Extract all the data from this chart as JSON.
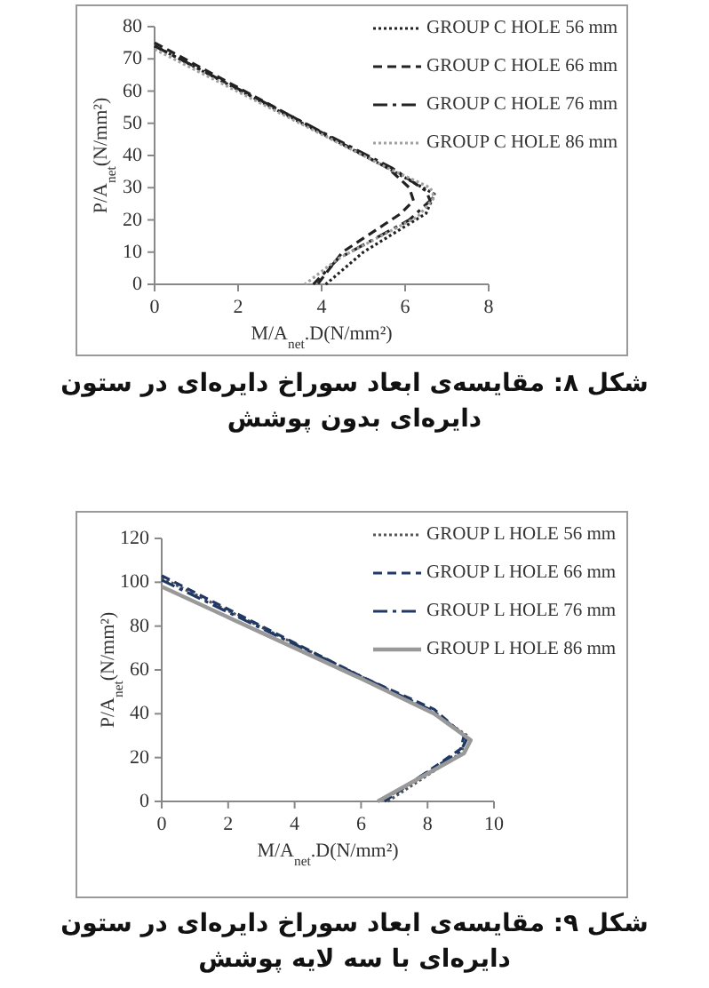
{
  "chart_data": [
    {
      "type": "line",
      "xlabel": "M/A$_{net}$.D(N/mm²)",
      "ylabel": "P/A$_{net}$(N/mm²)",
      "xlim": [
        0,
        8
      ],
      "ylim": [
        0,
        80
      ],
      "xticks": [
        0,
        2,
        4,
        6,
        8
      ],
      "yticks": [
        0,
        10,
        20,
        30,
        40,
        50,
        60,
        70,
        80
      ],
      "grid": false,
      "legend": "top right",
      "marker": "none",
      "annotations": [
        "شکل ۸: مقایسه‌ی ابعاد سوراخ دایره‌ای در ستون دایره‌ای بدون پوشش"
      ],
      "series": [
        {
          "name": "GROUP C HOLE 56 mm",
          "color": "#222222",
          "line_style": "dotted",
          "x": [
            0,
            5.6,
            6.7,
            6.5,
            5.0,
            4.1
          ],
          "values": [
            74,
            36,
            28,
            22,
            10,
            0
          ]
        },
        {
          "name": "GROUP C HOLE 66 mm",
          "color": "#222222",
          "line_style": "dashed",
          "x": [
            0,
            5.6,
            6.1,
            6.2,
            5.9,
            4.5,
            3.9
          ],
          "values": [
            75,
            36,
            30,
            26,
            22,
            10,
            0
          ]
        },
        {
          "name": "GROUP C HOLE 76 mm",
          "color": "#222222",
          "line_style": "dashdot",
          "x": [
            0,
            5.7,
            6.5,
            6.6,
            6.1,
            4.4,
            3.8
          ],
          "values": [
            74,
            36,
            29,
            26,
            20,
            8,
            0
          ]
        },
        {
          "name": "GROUP C HOLE 86 mm",
          "color": "#a0a0a0",
          "line_style": "dotted",
          "x": [
            0,
            5.6,
            6.6,
            6.7,
            6.3,
            4.4,
            3.6
          ],
          "values": [
            73,
            36,
            30,
            27,
            21,
            8,
            0
          ]
        }
      ]
    },
    {
      "type": "line",
      "xlabel": "M/A$_{net}$.D(N/mm²)",
      "ylabel": "P/A$_{net}$(N/mm²)",
      "xlim": [
        0,
        10
      ],
      "ylim": [
        0,
        120
      ],
      "xticks": [
        0,
        2,
        4,
        6,
        8,
        10
      ],
      "yticks": [
        0,
        20,
        40,
        60,
        80,
        100,
        120
      ],
      "grid": false,
      "legend": "top right",
      "marker": "none",
      "annotations": [
        "شکل ۹: مقایسه‌ی ابعاد سوراخ دایره‌ای در ستون دایره‌ای با سه لایه پوشش"
      ],
      "series": [
        {
          "name": "GROUP L HOLE 56 mm",
          "color": "#555555",
          "line_style": "dotted",
          "x": [
            0,
            6,
            8,
            9.2,
            9.0,
            6.8
          ],
          "values": [
            102,
            57,
            42,
            30,
            22,
            0
          ]
        },
        {
          "name": "GROUP L HOLE 66 mm",
          "color": "#1f3864",
          "line_style": "dashed",
          "x": [
            0,
            6,
            8.2,
            9.1,
            9.0,
            6.7
          ],
          "values": [
            103,
            57,
            42,
            30,
            24,
            0
          ]
        },
        {
          "name": "GROUP L HOLE 76 mm",
          "color": "#1f3864",
          "line_style": "dashdot",
          "x": [
            0,
            6,
            8.2,
            9.2,
            9.0,
            6.6
          ],
          "values": [
            101,
            57,
            41,
            29,
            23,
            0
          ]
        },
        {
          "name": "GROUP L HOLE 86 mm",
          "color": "#999999",
          "line_style": "solid",
          "x": [
            0,
            6,
            8.2,
            9.3,
            9.1,
            6.5
          ],
          "values": [
            98,
            56,
            40,
            28,
            22,
            0
          ]
        }
      ]
    }
  ]
}
